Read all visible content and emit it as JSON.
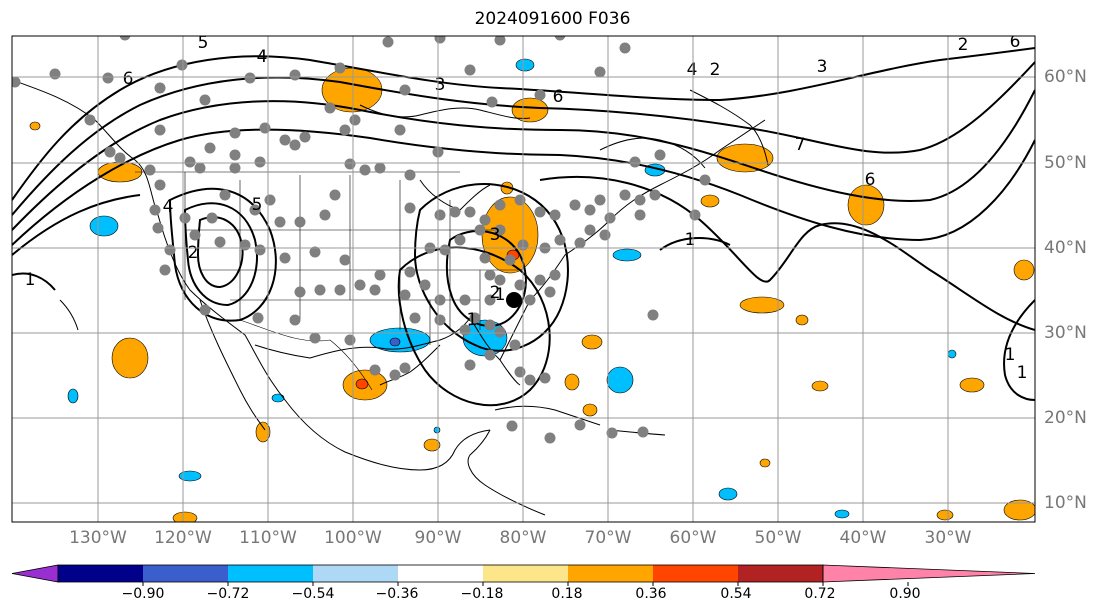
{
  "title": "2024091600 F036",
  "lat_labels": [
    "60°N",
    "50°N",
    "40°N",
    "30°N",
    "20°N",
    "10°N"
  ],
  "lon_labels": [
    "130°W",
    "120°W",
    "110°W",
    "100°W",
    "90°W",
    "80°W",
    "70°W",
    "60°W",
    "50°W",
    "40°W",
    "30°W"
  ],
  "colorbar": {
    "ticks": [
      "−0.90",
      "−0.72",
      "−0.54",
      "−0.36",
      "−0.18",
      "0.18",
      "0.36",
      "0.54",
      "0.72",
      "0.90"
    ],
    "colors": [
      "#9a2fd1",
      "#00008b",
      "#3a5fcd",
      "#00bfff",
      "#add8f6",
      "#ffffff",
      "#fde68a",
      "#ffa500",
      "#ff4500",
      "#b22222",
      "#ff82a9"
    ]
  },
  "contour_labels": [
    "5",
    "4",
    "6",
    "3",
    "2",
    "6",
    "4",
    "3",
    "2",
    "6",
    "5",
    "4",
    "7",
    "1",
    "6",
    "1",
    "2",
    "1",
    "1",
    "3",
    "1",
    "1",
    "2"
  ],
  "colors": {
    "land_outline": "#000000",
    "grid": "#999999",
    "station": "#808080",
    "highlight_station": "#000000"
  }
}
